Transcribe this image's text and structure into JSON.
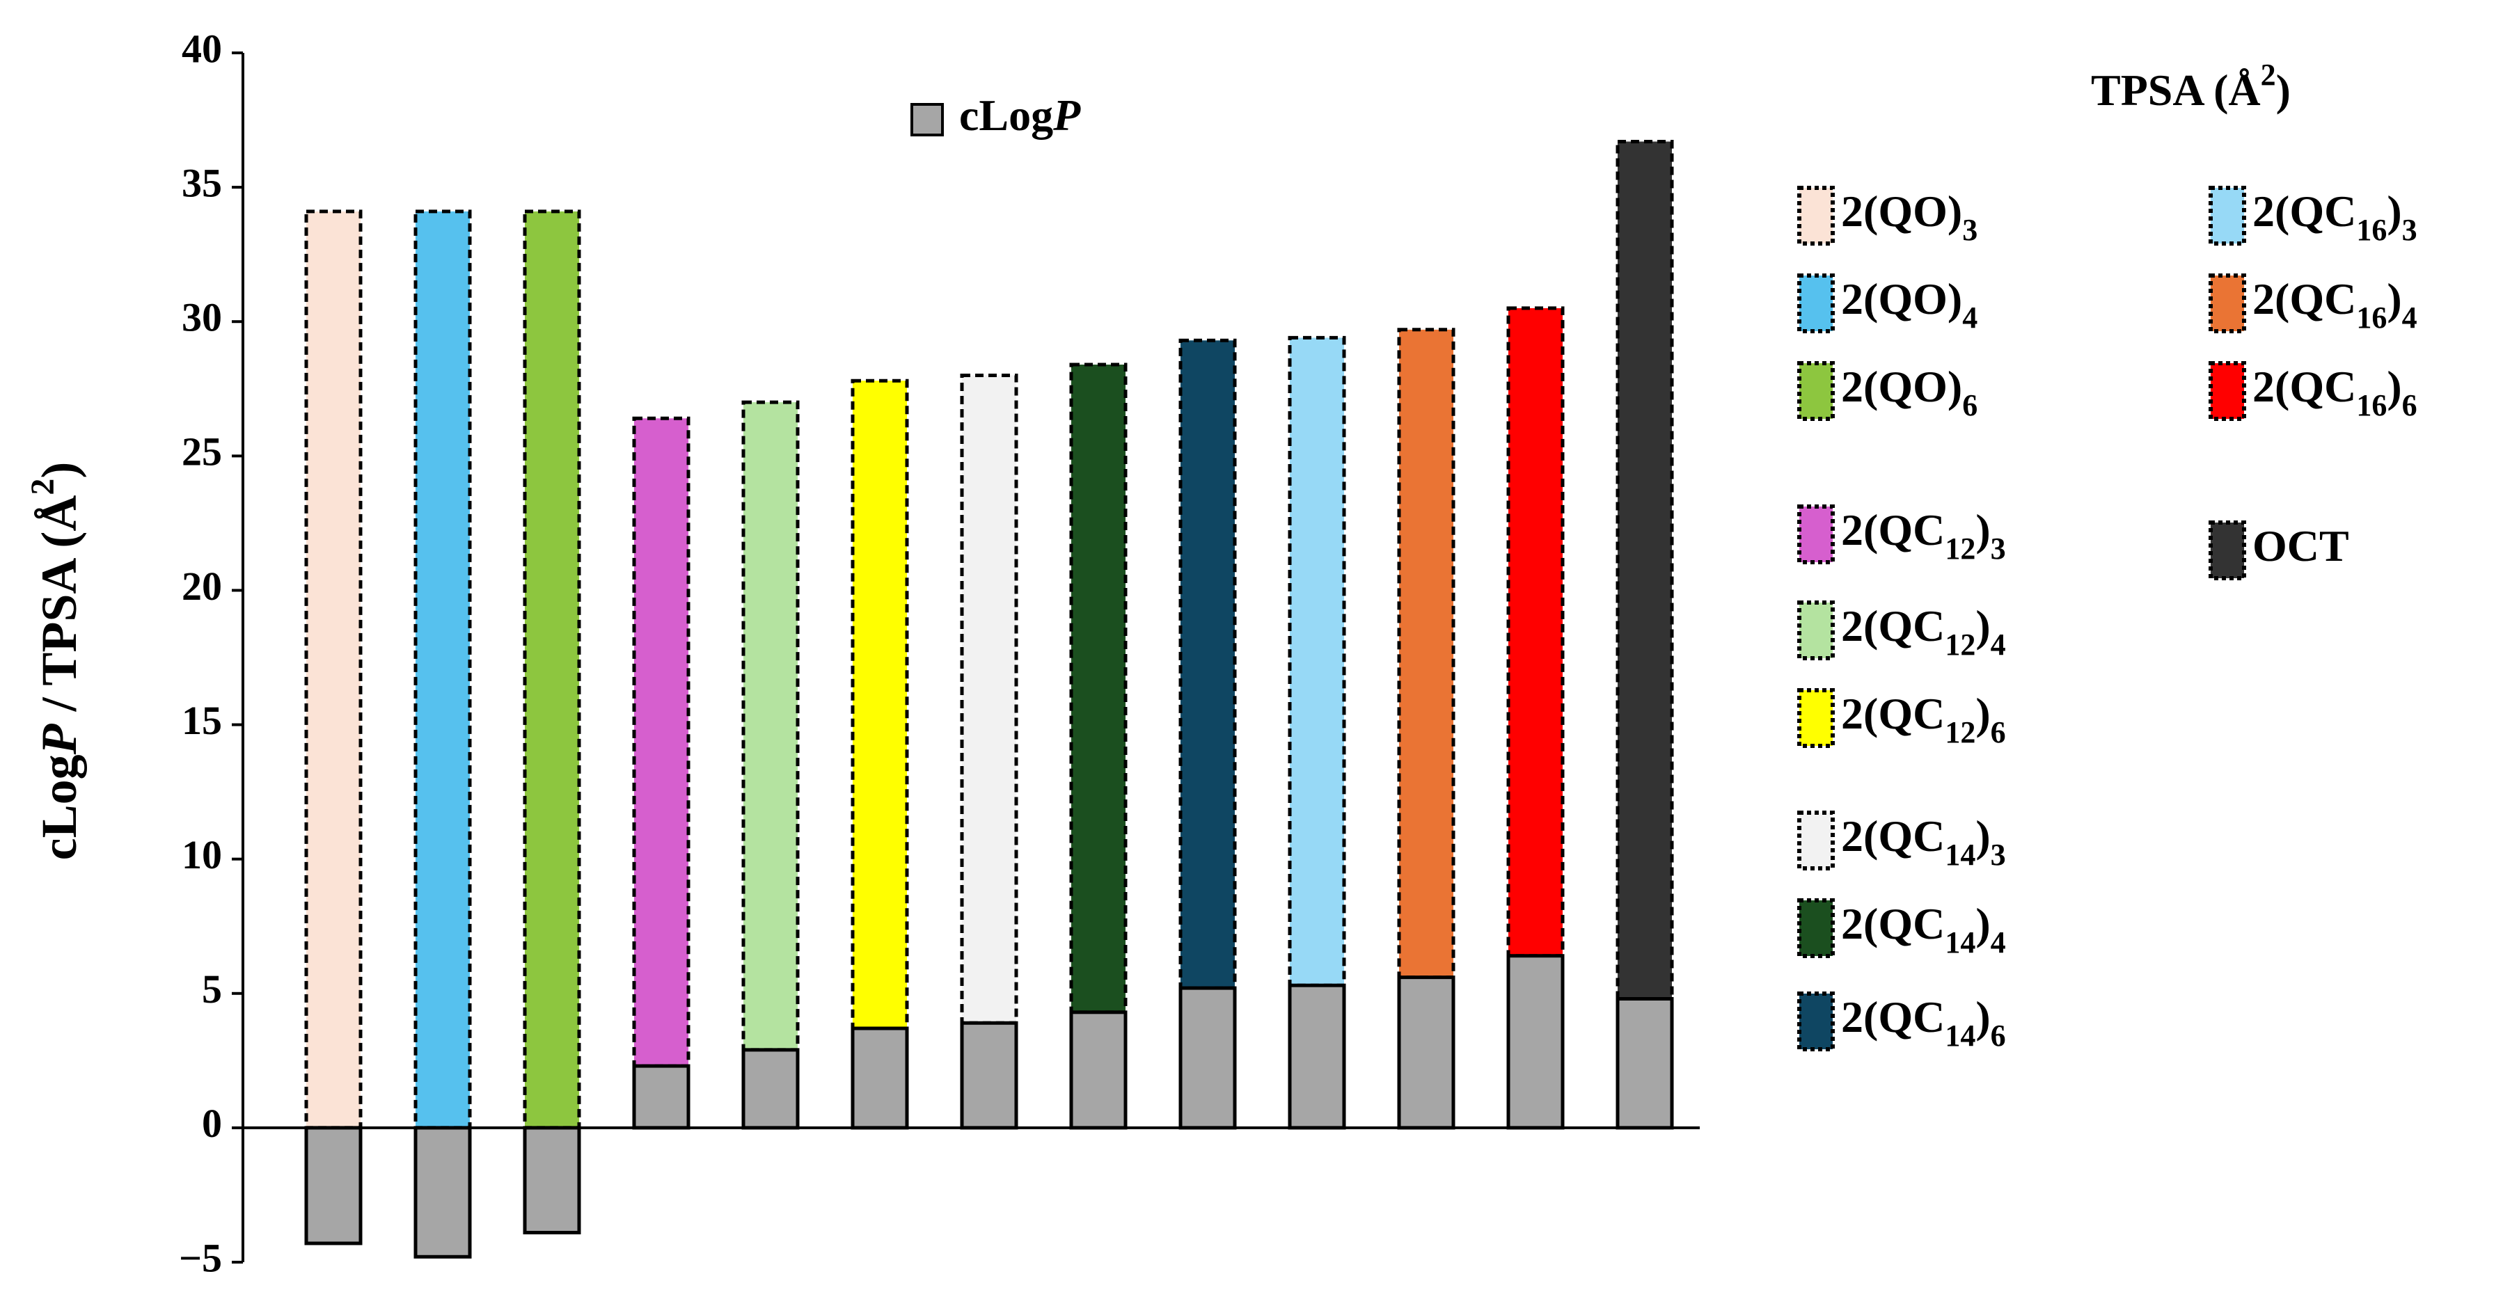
{
  "chart_data": {
    "type": "bar",
    "stacked": true,
    "y_label_parts": [
      "cLog",
      "P",
      " / TPSA (Å",
      "2",
      ")"
    ],
    "categories": [
      null,
      null,
      null,
      null,
      null,
      null,
      null,
      null,
      null,
      null,
      null,
      null,
      null
    ],
    "ylim": [
      -5,
      40
    ],
    "yticks": [
      {
        "value": -5,
        "label": "−5"
      },
      0,
      5,
      10,
      15,
      20,
      25,
      30,
      35,
      40
    ],
    "series": [
      {
        "name_parts": [
          "cLog",
          "P"
        ],
        "color": "#a6a6a6",
        "values": [
          -4.3,
          -4.8,
          -3.9,
          2.3,
          2.9,
          3.7,
          3.9,
          4.3,
          5.2,
          5.3,
          5.6,
          6.4,
          4.8
        ]
      },
      {
        "name_parts": [
          "TPSA (Å",
          "2",
          ")"
        ],
        "values": [
          34.1,
          34.1,
          34.1,
          24.1,
          24.1,
          24.1,
          24.1,
          24.1,
          24.1,
          24.1,
          24.1,
          24.1,
          31.9
        ],
        "colors": [
          "#fbe3d6",
          "#56c1ee",
          "#8dc63f",
          "#d65fce",
          "#b4e3a0",
          "#ffff00",
          "#f2f2f2",
          "#1b4f1f",
          "#0f4662",
          "#97d9f6",
          "#ea7434",
          "#ff0000",
          "#333333"
        ],
        "item_names": [
          [
            "2(QO)",
            "3"
          ],
          [
            "2(QO)",
            "4"
          ],
          [
            "2(QO)",
            "6"
          ],
          [
            "2(QC",
            "12",
            ")",
            "3"
          ],
          [
            "2(QC",
            "12",
            ")",
            "4"
          ],
          [
            "2(QC",
            "12",
            ")",
            "6"
          ],
          [
            "2(QC",
            "14",
            ")",
            "3"
          ],
          [
            "2(QC",
            "14",
            ")",
            "4"
          ],
          [
            "2(QC",
            "14",
            ")",
            "6"
          ],
          [
            "2(QC",
            "16",
            ")",
            "3"
          ],
          [
            "2(QC",
            "16",
            ")",
            "4"
          ],
          [
            "2(QC",
            "16",
            ")",
            "6"
          ],
          [
            "OCT"
          ]
        ]
      }
    ]
  }
}
